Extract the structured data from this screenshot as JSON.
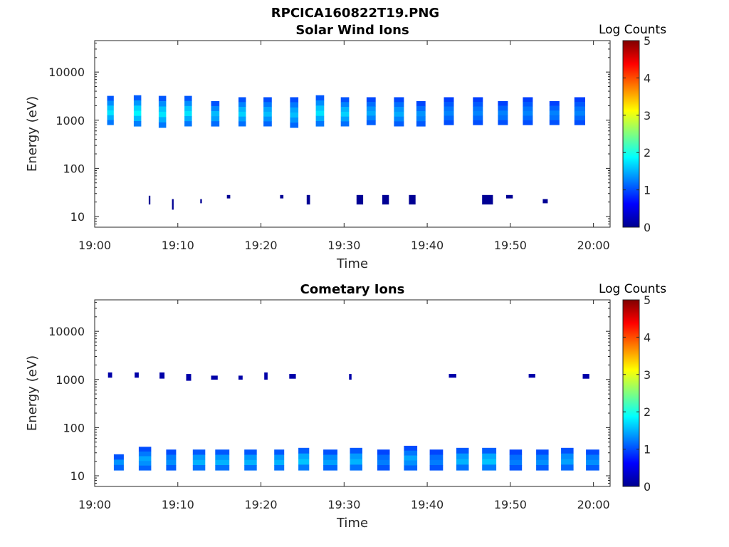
{
  "figure": {
    "filename": "RPCICA160822T19.PNG",
    "colors": {
      "text": "#262626",
      "axis": "#262626",
      "background": "#ffffff"
    }
  },
  "chart_data": [
    {
      "type": "heatmap",
      "title": "Solar Wind Ions",
      "xlabel": "Time",
      "ylabel": "Energy (eV)",
      "x_ticks": [
        "19:00",
        "19:10",
        "19:20",
        "19:30",
        "19:40",
        "19:50",
        "20:00"
      ],
      "xlim_minutes": [
        0,
        62
      ],
      "y_scale": "log",
      "ylim": [
        6,
        45000
      ],
      "y_ticks": [
        10,
        100,
        1000,
        10000
      ],
      "y_tick_labels": [
        "10",
        "100",
        "1000",
        "10000"
      ],
      "colorbar": {
        "label": "Log Counts",
        "range": [
          0,
          5
        ],
        "ticks": [
          "0",
          "1",
          "2",
          "3",
          "4",
          "5"
        ],
        "colormap": "jet"
      },
      "grid": false,
      "patches": [
        {
          "t": [
            1.5,
            2.3
          ],
          "e": [
            800,
            3200
          ],
          "v": [
            0.8,
            1.8
          ]
        },
        {
          "t": [
            4.7,
            5.6
          ],
          "e": [
            750,
            3300
          ],
          "v": [
            0.8,
            1.9
          ]
        },
        {
          "t": [
            7.7,
            8.6
          ],
          "e": [
            700,
            3200
          ],
          "v": [
            0.8,
            1.8
          ]
        },
        {
          "t": [
            10.8,
            11.7
          ],
          "e": [
            750,
            3200
          ],
          "v": [
            0.8,
            1.8
          ]
        },
        {
          "t": [
            14.0,
            15.0
          ],
          "e": [
            750,
            2500
          ],
          "v": [
            0.8,
            1.6
          ]
        },
        {
          "t": [
            17.3,
            18.2
          ],
          "e": [
            750,
            3000
          ],
          "v": [
            0.8,
            1.7
          ]
        },
        {
          "t": [
            20.3,
            21.3
          ],
          "e": [
            750,
            3000
          ],
          "v": [
            0.8,
            1.6
          ]
        },
        {
          "t": [
            23.5,
            24.5
          ],
          "e": [
            700,
            3000
          ],
          "v": [
            0.8,
            1.6
          ]
        },
        {
          "t": [
            26.6,
            27.6
          ],
          "e": [
            750,
            3300
          ],
          "v": [
            0.8,
            1.8
          ]
        },
        {
          "t": [
            29.6,
            30.6
          ],
          "e": [
            750,
            3000
          ],
          "v": [
            0.8,
            1.7
          ]
        },
        {
          "t": [
            32.7,
            33.8
          ],
          "e": [
            800,
            3000
          ],
          "v": [
            0.8,
            1.5
          ]
        },
        {
          "t": [
            36.0,
            37.2
          ],
          "e": [
            750,
            3000
          ],
          "v": [
            0.8,
            1.5
          ]
        },
        {
          "t": [
            38.7,
            39.8
          ],
          "e": [
            750,
            2500
          ],
          "v": [
            0.8,
            1.4
          ]
        },
        {
          "t": [
            42.0,
            43.2
          ],
          "e": [
            800,
            3000
          ],
          "v": [
            0.8,
            1.3
          ]
        },
        {
          "t": [
            45.5,
            46.7
          ],
          "e": [
            800,
            3000
          ],
          "v": [
            0.8,
            1.3
          ]
        },
        {
          "t": [
            48.5,
            49.7
          ],
          "e": [
            800,
            2500
          ],
          "v": [
            0.8,
            1.3
          ]
        },
        {
          "t": [
            51.5,
            52.7
          ],
          "e": [
            800,
            3000
          ],
          "v": [
            0.8,
            1.3
          ]
        },
        {
          "t": [
            54.7,
            55.9
          ],
          "e": [
            800,
            2500
          ],
          "v": [
            0.8,
            1.3
          ]
        },
        {
          "t": [
            57.7,
            59.0
          ],
          "e": [
            800,
            3000
          ],
          "v": [
            0.8,
            1.3
          ]
        },
        {
          "t": [
            6.5,
            6.7
          ],
          "e": [
            18,
            27
          ],
          "v": [
            0.1,
            0.1
          ]
        },
        {
          "t": [
            9.3,
            9.5
          ],
          "e": [
            14,
            23
          ],
          "v": [
            0.1,
            0.1
          ]
        },
        {
          "t": [
            12.7,
            12.9
          ],
          "e": [
            19,
            23
          ],
          "v": [
            0.1,
            0.1
          ]
        },
        {
          "t": [
            15.9,
            16.3
          ],
          "e": [
            24,
            28
          ],
          "v": [
            0.1,
            0.1
          ]
        },
        {
          "t": [
            22.3,
            22.7
          ],
          "e": [
            24,
            28
          ],
          "v": [
            0.1,
            0.1
          ]
        },
        {
          "t": [
            25.5,
            25.9
          ],
          "e": [
            18,
            28
          ],
          "v": [
            0.1,
            0.1
          ]
        },
        {
          "t": [
            31.5,
            32.3
          ],
          "e": [
            18,
            28
          ],
          "v": [
            0.1,
            0.1
          ]
        },
        {
          "t": [
            34.6,
            35.4
          ],
          "e": [
            18,
            28
          ],
          "v": [
            0.1,
            0.1
          ]
        },
        {
          "t": [
            37.8,
            38.6
          ],
          "e": [
            18,
            28
          ],
          "v": [
            0.1,
            0.1
          ]
        },
        {
          "t": [
            46.6,
            47.9
          ],
          "e": [
            18,
            28
          ],
          "v": [
            0.1,
            0.1
          ]
        },
        {
          "t": [
            49.5,
            50.3
          ],
          "e": [
            24,
            28
          ],
          "v": [
            0.1,
            0.1
          ]
        },
        {
          "t": [
            53.9,
            54.5
          ],
          "e": [
            19,
            23
          ],
          "v": [
            0.1,
            0.1
          ]
        }
      ]
    },
    {
      "type": "heatmap",
      "title": "Cometary Ions",
      "xlabel": "Time",
      "ylabel": "Energy (eV)",
      "x_ticks": [
        "19:00",
        "19:10",
        "19:20",
        "19:30",
        "19:40",
        "19:50",
        "20:00"
      ],
      "xlim_minutes": [
        0,
        62
      ],
      "y_scale": "log",
      "ylim": [
        6,
        45000
      ],
      "y_ticks": [
        10,
        100,
        1000,
        10000
      ],
      "y_tick_labels": [
        "10",
        "100",
        "1000",
        "10000"
      ],
      "colorbar": {
        "label": "Log Counts",
        "range": [
          0,
          5
        ],
        "ticks": [
          "0",
          "1",
          "2",
          "3",
          "4",
          "5"
        ],
        "colormap": "jet"
      },
      "grid": false,
      "patches": [
        {
          "t": [
            1.6,
            2.1
          ],
          "e": [
            1100,
            1400
          ],
          "v": [
            0.2,
            0.2
          ]
        },
        {
          "t": [
            4.8,
            5.3
          ],
          "e": [
            1100,
            1400
          ],
          "v": [
            0.2,
            0.2
          ]
        },
        {
          "t": [
            7.8,
            8.4
          ],
          "e": [
            1050,
            1400
          ],
          "v": [
            0.2,
            0.2
          ]
        },
        {
          "t": [
            11.0,
            11.6
          ],
          "e": [
            950,
            1300
          ],
          "v": [
            0.2,
            0.2
          ]
        },
        {
          "t": [
            14.0,
            14.8
          ],
          "e": [
            1000,
            1200
          ],
          "v": [
            0.2,
            0.2
          ]
        },
        {
          "t": [
            17.3,
            17.8
          ],
          "e": [
            1000,
            1200
          ],
          "v": [
            0.2,
            0.2
          ]
        },
        {
          "t": [
            20.4,
            20.8
          ],
          "e": [
            1000,
            1400
          ],
          "v": [
            0.2,
            0.2
          ]
        },
        {
          "t": [
            23.4,
            24.2
          ],
          "e": [
            1050,
            1300
          ],
          "v": [
            0.2,
            0.2
          ]
        },
        {
          "t": [
            30.6,
            30.9
          ],
          "e": [
            1000,
            1300
          ],
          "v": [
            0.2,
            0.2
          ]
        },
        {
          "t": [
            42.6,
            43.5
          ],
          "e": [
            1100,
            1300
          ],
          "v": [
            0.2,
            0.2
          ]
        },
        {
          "t": [
            52.2,
            53.0
          ],
          "e": [
            1100,
            1300
          ],
          "v": [
            0.2,
            0.2
          ]
        },
        {
          "t": [
            58.7,
            59.5
          ],
          "e": [
            1050,
            1300
          ],
          "v": [
            0.2,
            0.2
          ]
        },
        {
          "t": [
            2.3,
            3.5
          ],
          "e": [
            13,
            28
          ],
          "v": [
            0.8,
            1.4
          ]
        },
        {
          "t": [
            5.3,
            6.8
          ],
          "e": [
            13,
            40
          ],
          "v": [
            0.8,
            1.5
          ]
        },
        {
          "t": [
            8.6,
            9.8
          ],
          "e": [
            13,
            35
          ],
          "v": [
            0.8,
            1.4
          ]
        },
        {
          "t": [
            11.8,
            13.3
          ],
          "e": [
            13,
            35
          ],
          "v": [
            0.8,
            1.6
          ]
        },
        {
          "t": [
            14.5,
            16.2
          ],
          "e": [
            13,
            35
          ],
          "v": [
            0.8,
            1.6
          ]
        },
        {
          "t": [
            18.0,
            19.5
          ],
          "e": [
            13,
            35
          ],
          "v": [
            0.8,
            1.6
          ]
        },
        {
          "t": [
            21.6,
            22.8
          ],
          "e": [
            13,
            35
          ],
          "v": [
            0.8,
            1.6
          ]
        },
        {
          "t": [
            24.5,
            25.8
          ],
          "e": [
            13,
            38
          ],
          "v": [
            0.8,
            1.7
          ]
        },
        {
          "t": [
            27.5,
            29.2
          ],
          "e": [
            13,
            35
          ],
          "v": [
            0.8,
            1.5
          ]
        },
        {
          "t": [
            30.7,
            32.2
          ],
          "e": [
            13,
            38
          ],
          "v": [
            0.8,
            1.6
          ]
        },
        {
          "t": [
            34.0,
            35.5
          ],
          "e": [
            13,
            35
          ],
          "v": [
            0.8,
            1.3
          ]
        },
        {
          "t": [
            37.2,
            38.8
          ],
          "e": [
            13,
            42
          ],
          "v": [
            0.8,
            1.5
          ]
        },
        {
          "t": [
            40.3,
            41.9
          ],
          "e": [
            13,
            35
          ],
          "v": [
            0.8,
            1.3
          ]
        },
        {
          "t": [
            43.5,
            45.0
          ],
          "e": [
            13,
            38
          ],
          "v": [
            0.8,
            1.6
          ]
        },
        {
          "t": [
            46.6,
            48.3
          ],
          "e": [
            13,
            38
          ],
          "v": [
            0.8,
            1.7
          ]
        },
        {
          "t": [
            49.9,
            51.4
          ],
          "e": [
            13,
            35
          ],
          "v": [
            0.8,
            1.3
          ]
        },
        {
          "t": [
            53.1,
            54.6
          ],
          "e": [
            13,
            35
          ],
          "v": [
            0.8,
            1.4
          ]
        },
        {
          "t": [
            56.1,
            57.6
          ],
          "e": [
            13,
            38
          ],
          "v": [
            0.8,
            1.5
          ]
        },
        {
          "t": [
            59.1,
            60.7
          ],
          "e": [
            13,
            35
          ],
          "v": [
            0.8,
            1.4
          ]
        }
      ]
    }
  ]
}
